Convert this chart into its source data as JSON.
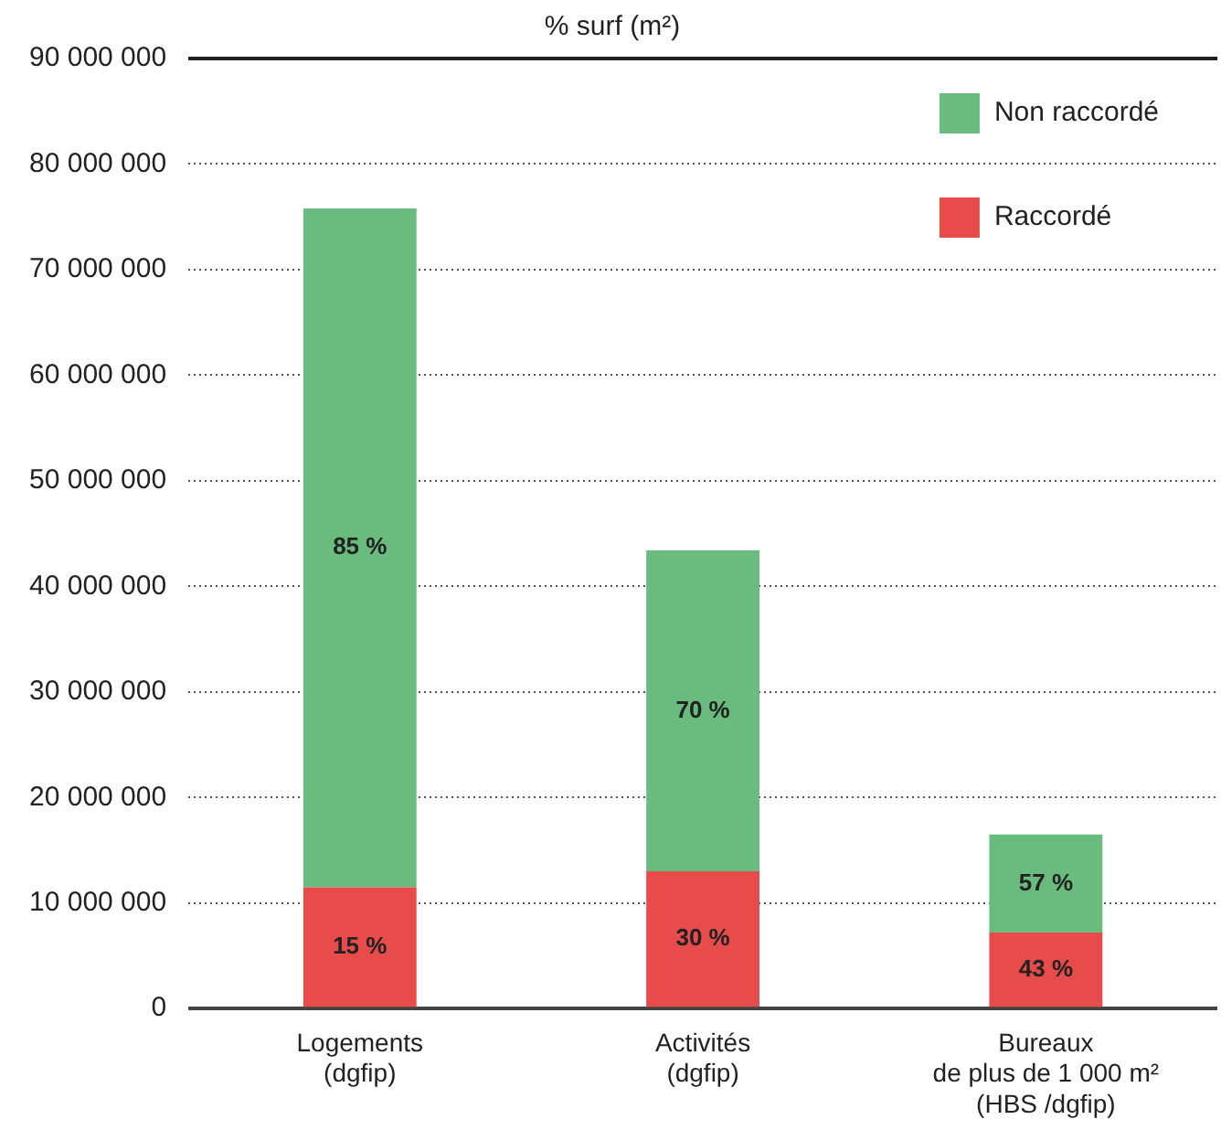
{
  "chart_data": {
    "type": "bar",
    "title": "% surf (m²)",
    "stacked": true,
    "categories": [
      "Logements\n(dgfip)",
      "Activités\n(dgfip)",
      "Bureaux\nde plus de 1 000 m²\n(HBS /dgfip)"
    ],
    "series": [
      {
        "name": "Raccordé",
        "color": "#e84c4a",
        "values": [
          11500000,
          13000000,
          7200000
        ]
      },
      {
        "name": "Non raccordé",
        "color": "#6abb7e",
        "values": [
          64300000,
          30400000,
          9300000
        ]
      }
    ],
    "annotations": [
      "15 %",
      "85 %",
      "30 %",
      "70 %",
      "43 %",
      "57 %"
    ],
    "ylim": [
      0,
      90000000
    ],
    "yticks": [
      0,
      10000000,
      20000000,
      30000000,
      40000000,
      50000000,
      60000000,
      70000000,
      80000000,
      90000000
    ],
    "grid": "y",
    "legend": "top right"
  }
}
